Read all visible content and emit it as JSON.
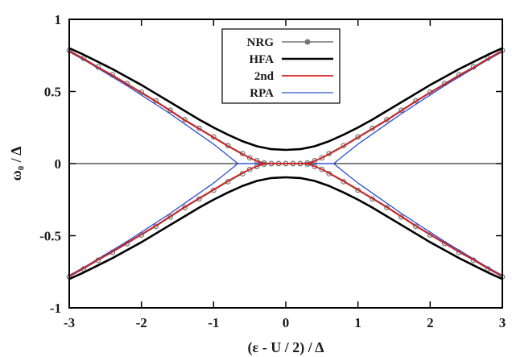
{
  "chart_data": {
    "type": "line",
    "xlabel": "(ε - U / 2) / Δ",
    "ylabel": "ω₀ / Δ",
    "xlim": [
      -3,
      3
    ],
    "ylim": [
      -1,
      1
    ],
    "x_ticks": [
      -3,
      -2,
      -1,
      0,
      1,
      2,
      3
    ],
    "x_tick_labels": [
      "-3",
      "-2",
      "-1",
      "0",
      "1",
      "2",
      "3"
    ],
    "y_ticks": [
      -1,
      -0.5,
      0,
      0.5,
      1
    ],
    "y_tick_labels": [
      "-1",
      "-0.5",
      "0",
      "0.5",
      "1"
    ],
    "grid": false,
    "zero_line": true,
    "legend_position": "top-center",
    "series": [
      {
        "name": "NRG",
        "color": "#777777",
        "marker": "circle",
        "x": [
          -3.0,
          -2.8,
          -2.6,
          -2.4,
          -2.2,
          -2.0,
          -1.8,
          -1.6,
          -1.4,
          -1.2,
          -1.0,
          -0.8,
          -0.6,
          -0.5,
          -0.4,
          -0.3,
          -0.2,
          -0.1,
          0.0,
          0.1,
          0.2,
          0.3,
          0.4,
          0.5,
          0.6,
          0.8,
          1.0,
          1.2,
          1.4,
          1.6,
          1.8,
          2.0,
          2.2,
          2.4,
          2.6,
          2.8,
          3.0
        ],
        "y": [
          0.785,
          0.73,
          0.67,
          0.615,
          0.555,
          0.495,
          0.435,
          0.37,
          0.305,
          0.245,
          0.185,
          0.125,
          0.07,
          0.04,
          0.02,
          0.005,
          0.0,
          0.0,
          0.0,
          0.0,
          0.0,
          0.005,
          0.02,
          0.04,
          0.07,
          0.125,
          0.185,
          0.245,
          0.305,
          0.37,
          0.435,
          0.495,
          0.555,
          0.615,
          0.67,
          0.73,
          0.785
        ]
      },
      {
        "name": "HFA",
        "color": "#000000",
        "marker": "none",
        "x": [
          -3.0,
          -2.8,
          -2.6,
          -2.4,
          -2.2,
          -2.0,
          -1.8,
          -1.6,
          -1.4,
          -1.2,
          -1.0,
          -0.8,
          -0.6,
          -0.4,
          -0.2,
          0.0,
          0.2,
          0.4,
          0.6,
          0.8,
          1.0,
          1.2,
          1.4,
          1.6,
          1.8,
          2.0,
          2.2,
          2.4,
          2.6,
          2.8,
          3.0
        ],
        "y": [
          0.8,
          0.755,
          0.705,
          0.655,
          0.6,
          0.545,
          0.485,
          0.425,
          0.365,
          0.305,
          0.25,
          0.2,
          0.155,
          0.12,
          0.1,
          0.095,
          0.1,
          0.12,
          0.155,
          0.2,
          0.25,
          0.305,
          0.365,
          0.425,
          0.485,
          0.545,
          0.6,
          0.655,
          0.705,
          0.755,
          0.8
        ]
      },
      {
        "name": "2nd",
        "color": "#d42020",
        "marker": "none",
        "x": [
          -3.0,
          -2.8,
          -2.6,
          -2.4,
          -2.2,
          -2.0,
          -1.8,
          -1.6,
          -1.4,
          -1.2,
          -1.0,
          -0.8,
          -0.6,
          -0.5,
          -0.4,
          -0.35,
          -0.3,
          0.3,
          0.35,
          0.4,
          0.5,
          0.6,
          0.8,
          1.0,
          1.2,
          1.4,
          1.6,
          1.8,
          2.0,
          2.2,
          2.4,
          2.6,
          2.8,
          3.0
        ],
        "y": [
          0.78,
          0.725,
          0.665,
          0.61,
          0.55,
          0.49,
          0.43,
          0.365,
          0.3,
          0.24,
          0.18,
          0.12,
          0.065,
          0.04,
          0.018,
          0.006,
          0.0,
          0.0,
          0.006,
          0.018,
          0.04,
          0.065,
          0.12,
          0.18,
          0.24,
          0.3,
          0.365,
          0.43,
          0.49,
          0.55,
          0.61,
          0.665,
          0.725,
          0.78
        ]
      },
      {
        "name": "RPA",
        "color": "#2a4fd0",
        "marker": "none",
        "x": [
          -3.0,
          -2.8,
          -2.6,
          -2.4,
          -2.2,
          -2.0,
          -1.8,
          -1.6,
          -1.4,
          -1.2,
          -1.0,
          -0.9,
          -0.8,
          -0.75,
          -0.7,
          -0.68,
          -0.66,
          0.66,
          0.68,
          0.7,
          0.75,
          0.8,
          0.9,
          1.0,
          1.2,
          1.4,
          1.6,
          1.8,
          2.0,
          2.2,
          2.4,
          2.6,
          2.8,
          3.0
        ],
        "y": [
          0.775,
          0.72,
          0.66,
          0.6,
          0.54,
          0.475,
          0.41,
          0.345,
          0.275,
          0.205,
          0.135,
          0.095,
          0.055,
          0.035,
          0.015,
          0.006,
          0.0,
          0.0,
          0.006,
          0.015,
          0.035,
          0.055,
          0.095,
          0.135,
          0.205,
          0.275,
          0.345,
          0.41,
          0.475,
          0.54,
          0.6,
          0.66,
          0.72,
          0.775
        ]
      }
    ],
    "symmetric_about_zero": true
  }
}
